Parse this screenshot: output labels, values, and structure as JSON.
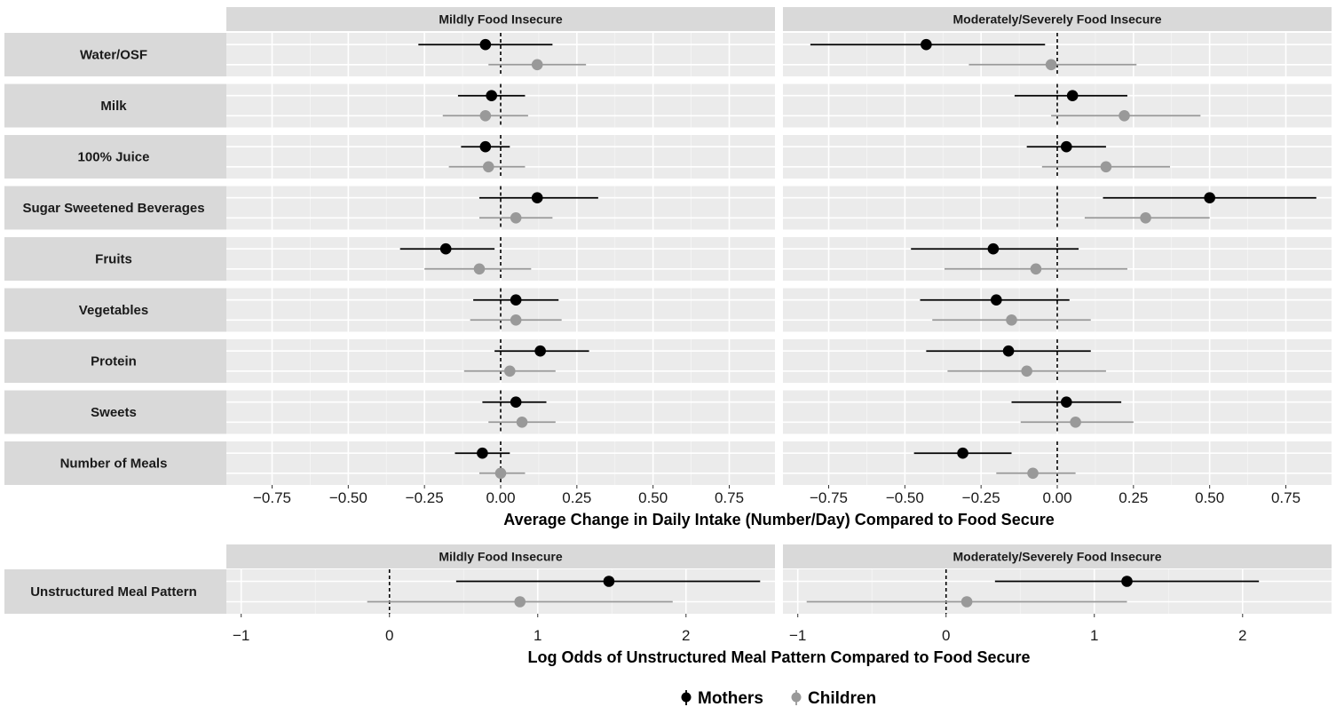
{
  "chart_data": [
    {
      "type": "scatter",
      "subtype": "forest-plot",
      "facets": [
        "Mildly Food Insecure",
        "Moderately/Severely Food Insecure"
      ],
      "rows": [
        "Water/OSF",
        "Milk",
        "100% Juice",
        "Sugar Sweetened Beverages",
        "Fruits",
        "Vegetables",
        "Protein",
        "Sweets",
        "Number of Meals"
      ],
      "xlabel": "Average Change in Daily Intake (Number/Day) Compared to Food Secure",
      "xlim": [
        -0.9,
        0.9
      ],
      "xticks": [
        -0.75,
        -0.5,
        -0.25,
        0,
        0.25,
        0.5,
        0.75
      ],
      "xtick_labels": [
        "−0.75",
        "−0.50",
        "−0.25",
        "0.00",
        "0.25",
        "0.50",
        "0.75"
      ],
      "reference_line": 0,
      "grid": true,
      "series": [
        {
          "name": "Mothers",
          "color": "#000000",
          "facet_values": [
            [
              {
                "est": -0.05,
                "lo": -0.27,
                "hi": 0.17
              },
              {
                "est": -0.03,
                "lo": -0.14,
                "hi": 0.08
              },
              {
                "est": -0.05,
                "lo": -0.13,
                "hi": 0.03
              },
              {
                "est": 0.12,
                "lo": -0.07,
                "hi": 0.32
              },
              {
                "est": -0.18,
                "lo": -0.33,
                "hi": -0.02
              },
              {
                "est": 0.05,
                "lo": -0.09,
                "hi": 0.19
              },
              {
                "est": 0.13,
                "lo": -0.02,
                "hi": 0.29
              },
              {
                "est": 0.05,
                "lo": -0.06,
                "hi": 0.15
              },
              {
                "est": -0.06,
                "lo": -0.15,
                "hi": 0.03
              }
            ],
            [
              {
                "est": -0.43,
                "lo": -0.81,
                "hi": -0.04
              },
              {
                "est": 0.05,
                "lo": -0.14,
                "hi": 0.23
              },
              {
                "est": 0.03,
                "lo": -0.1,
                "hi": 0.16
              },
              {
                "est": 0.5,
                "lo": 0.15,
                "hi": 0.85
              },
              {
                "est": -0.21,
                "lo": -0.48,
                "hi": 0.07
              },
              {
                "est": -0.2,
                "lo": -0.45,
                "hi": 0.04
              },
              {
                "est": -0.16,
                "lo": -0.43,
                "hi": 0.11
              },
              {
                "est": 0.03,
                "lo": -0.15,
                "hi": 0.21
              },
              {
                "est": -0.31,
                "lo": -0.47,
                "hi": -0.15
              }
            ]
          ]
        },
        {
          "name": "Children",
          "color": "#999999",
          "facet_values": [
            [
              {
                "est": 0.12,
                "lo": -0.04,
                "hi": 0.28
              },
              {
                "est": -0.05,
                "lo": -0.19,
                "hi": 0.09
              },
              {
                "est": -0.04,
                "lo": -0.17,
                "hi": 0.08
              },
              {
                "est": 0.05,
                "lo": -0.07,
                "hi": 0.17
              },
              {
                "est": -0.07,
                "lo": -0.25,
                "hi": 0.1
              },
              {
                "est": 0.05,
                "lo": -0.1,
                "hi": 0.2
              },
              {
                "est": 0.03,
                "lo": -0.12,
                "hi": 0.18
              },
              {
                "est": 0.07,
                "lo": -0.04,
                "hi": 0.18
              },
              {
                "est": 0.0,
                "lo": -0.07,
                "hi": 0.08
              }
            ],
            [
              {
                "est": -0.02,
                "lo": -0.29,
                "hi": 0.26
              },
              {
                "est": 0.22,
                "lo": -0.02,
                "hi": 0.47
              },
              {
                "est": 0.16,
                "lo": -0.05,
                "hi": 0.37
              },
              {
                "est": 0.29,
                "lo": 0.09,
                "hi": 0.5
              },
              {
                "est": -0.07,
                "lo": -0.37,
                "hi": 0.23
              },
              {
                "est": -0.15,
                "lo": -0.41,
                "hi": 0.11
              },
              {
                "est": -0.1,
                "lo": -0.36,
                "hi": 0.16
              },
              {
                "est": 0.06,
                "lo": -0.12,
                "hi": 0.25
              },
              {
                "est": -0.08,
                "lo": -0.2,
                "hi": 0.06
              }
            ]
          ]
        }
      ]
    },
    {
      "type": "scatter",
      "subtype": "forest-plot",
      "facets": [
        "Mildly Food Insecure",
        "Moderately/Severely Food Insecure"
      ],
      "rows": [
        "Unstructured Meal Pattern"
      ],
      "xlabel": "Log Odds of Unstructured Meal Pattern Compared to Food Secure",
      "xlim": [
        -1.1,
        2.6
      ],
      "xticks": [
        -1,
        0,
        1,
        2
      ],
      "xtick_labels": [
        "−1",
        "0",
        "1",
        "2"
      ],
      "reference_line": 0,
      "grid": true,
      "series": [
        {
          "name": "Mothers",
          "color": "#000000",
          "facet_values": [
            [
              {
                "est": 1.48,
                "lo": 0.45,
                "hi": 2.5
              }
            ],
            [
              {
                "est": 1.22,
                "lo": 0.33,
                "hi": 2.11
              }
            ]
          ]
        },
        {
          "name": "Children",
          "color": "#999999",
          "facet_values": [
            [
              {
                "est": 0.88,
                "lo": -0.15,
                "hi": 1.91
              }
            ],
            [
              {
                "est": 0.14,
                "lo": -0.94,
                "hi": 1.22
              }
            ]
          ]
        }
      ]
    }
  ],
  "legend": {
    "position": "bottom",
    "items": [
      {
        "label": "Mothers",
        "color": "#000000"
      },
      {
        "label": "Children",
        "color": "#999999"
      }
    ]
  }
}
